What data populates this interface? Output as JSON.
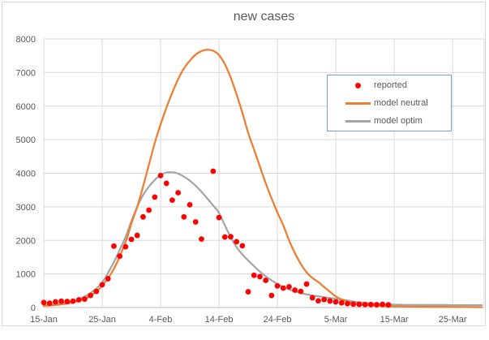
{
  "figure": {
    "outer_border_color": "#d9d9d9",
    "legend_border_color": "#79a2d1",
    "gridline_color": "#d9d9d9",
    "axis_line_color": "#bfbfbf",
    "text_color": "#595959"
  },
  "chart_data": {
    "type": "line+scatter",
    "title": "new cases",
    "xlabel": "",
    "ylabel": "",
    "grid": true,
    "legend_position": "inside top-right",
    "x_axis": {
      "tick_labels": [
        "15-Jan",
        "25-Jan",
        "4-Feb",
        "14-Feb",
        "24-Feb",
        "5-Mar",
        "15-Mar",
        "25-Mar"
      ],
      "tick_days": [
        0,
        10,
        20,
        30,
        40,
        50,
        60,
        70
      ],
      "domain_days": [
        0,
        75.4
      ]
    },
    "y_axis": {
      "min": 0,
      "max": 8000,
      "step": 1000,
      "tick_labels": [
        "0",
        "1000",
        "2000",
        "3000",
        "4000",
        "5000",
        "6000",
        "7000",
        "8000"
      ]
    },
    "series": [
      {
        "name": "reported",
        "type": "scatter",
        "color": "#ff0000",
        "marker": "dot",
        "dates": [
          "15-Jan",
          "16-Jan",
          "17-Jan",
          "18-Jan",
          "19-Jan",
          "20-Jan",
          "21-Jan",
          "22-Jan",
          "23-Jan",
          "24-Jan",
          "25-Jan",
          "26-Jan",
          "27-Jan",
          "28-Jan",
          "29-Jan",
          "30-Jan",
          "31-Jan",
          "1-Feb",
          "2-Feb",
          "3-Feb",
          "4-Feb",
          "5-Feb",
          "6-Feb",
          "7-Feb",
          "8-Feb",
          "9-Feb",
          "10-Feb",
          "11-Feb",
          "13-Feb",
          "14-Feb",
          "15-Feb",
          "16-Feb",
          "17-Feb",
          "18-Feb",
          "19-Feb",
          "20-Feb",
          "21-Feb",
          "22-Feb",
          "23-Feb",
          "24-Feb",
          "25-Feb",
          "26-Feb",
          "27-Feb",
          "28-Feb",
          "29-Feb",
          "1-Mar",
          "2-Mar",
          "3-Mar",
          "4-Mar",
          "5-Mar",
          "6-Mar",
          "7-Mar",
          "8-Mar",
          "9-Mar",
          "10-Mar",
          "11-Mar",
          "12-Mar",
          "13-Mar",
          "14-Mar"
        ],
        "days": [
          0,
          1,
          2,
          3,
          4,
          5,
          6,
          7,
          8,
          9,
          10,
          11,
          12,
          13,
          14,
          15,
          16,
          17,
          18,
          19,
          20,
          21,
          22,
          23,
          24,
          25,
          26,
          27,
          29,
          30,
          31,
          32,
          33,
          34,
          35,
          36,
          37,
          38,
          39,
          40,
          41,
          42,
          43,
          44,
          45,
          46,
          47,
          48,
          49,
          50,
          51,
          52,
          53,
          54,
          55,
          56,
          57,
          58,
          59
        ],
        "values": [
          150,
          130,
          170,
          190,
          180,
          190,
          230,
          250,
          360,
          480,
          680,
          860,
          1830,
          1530,
          1810,
          2030,
          2150,
          2700,
          2900,
          3290,
          3930,
          3700,
          3200,
          3420,
          2700,
          3060,
          2550,
          2040,
          4060,
          2680,
          2100,
          2110,
          1960,
          1840,
          470,
          960,
          920,
          810,
          360,
          645,
          580,
          620,
          520,
          480,
          700,
          290,
          200,
          235,
          195,
          170,
          140,
          115,
          100,
          95,
          90,
          90,
          85,
          95,
          80
        ]
      },
      {
        "name": "model neutral",
        "type": "line",
        "color": "#ed7d31",
        "points": [
          [
            0,
            50
          ],
          [
            2,
            75
          ],
          [
            4,
            120
          ],
          [
            6,
            200
          ],
          [
            8,
            350
          ],
          [
            10,
            650
          ],
          [
            12,
            1150
          ],
          [
            14,
            1950
          ],
          [
            15,
            2500
          ],
          [
            16,
            3000
          ],
          [
            17,
            3600
          ],
          [
            18,
            4250
          ],
          [
            19,
            4900
          ],
          [
            20,
            5450
          ],
          [
            21,
            5950
          ],
          [
            22,
            6400
          ],
          [
            23,
            6800
          ],
          [
            24,
            7120
          ],
          [
            25,
            7350
          ],
          [
            26,
            7530
          ],
          [
            27,
            7640
          ],
          [
            28,
            7680
          ],
          [
            29,
            7650
          ],
          [
            30,
            7520
          ],
          [
            31,
            7250
          ],
          [
            32,
            6850
          ],
          [
            33,
            6350
          ],
          [
            34,
            5800
          ],
          [
            35,
            5200
          ],
          [
            36,
            4700
          ],
          [
            37,
            4200
          ],
          [
            38,
            3700
          ],
          [
            39,
            3250
          ],
          [
            40,
            2830
          ],
          [
            41,
            2450
          ],
          [
            42,
            2000
          ],
          [
            43,
            1620
          ],
          [
            44,
            1300
          ],
          [
            45,
            1050
          ],
          [
            46,
            880
          ],
          [
            47,
            760
          ],
          [
            48,
            610
          ],
          [
            49,
            470
          ],
          [
            50,
            330
          ],
          [
            51,
            240
          ],
          [
            52,
            175
          ],
          [
            53,
            125
          ],
          [
            54,
            95
          ],
          [
            55,
            75
          ],
          [
            56,
            60
          ],
          [
            58,
            45
          ],
          [
            60,
            36
          ],
          [
            63,
            27
          ],
          [
            66,
            21
          ],
          [
            70,
            16
          ],
          [
            75,
            13
          ]
        ]
      },
      {
        "name": "model optim",
        "type": "line",
        "color": "#a5a5a5",
        "points": [
          [
            0,
            60
          ],
          [
            2,
            95
          ],
          [
            4,
            150
          ],
          [
            6,
            250
          ],
          [
            8,
            430
          ],
          [
            10,
            750
          ],
          [
            12,
            1350
          ],
          [
            13,
            1720
          ],
          [
            14,
            2100
          ],
          [
            15,
            2570
          ],
          [
            16,
            3000
          ],
          [
            17,
            3350
          ],
          [
            18,
            3600
          ],
          [
            19,
            3800
          ],
          [
            20,
            3950
          ],
          [
            21,
            4020
          ],
          [
            22,
            4030
          ],
          [
            23,
            3990
          ],
          [
            24,
            3900
          ],
          [
            25,
            3780
          ],
          [
            26,
            3630
          ],
          [
            27,
            3450
          ],
          [
            28,
            3250
          ],
          [
            29,
            3040
          ],
          [
            30,
            2820
          ],
          [
            31,
            2450
          ],
          [
            32,
            2100
          ],
          [
            33,
            1800
          ],
          [
            34,
            1580
          ],
          [
            35,
            1400
          ],
          [
            36,
            1230
          ],
          [
            37,
            1070
          ],
          [
            38,
            930
          ],
          [
            39,
            810
          ],
          [
            40,
            700
          ],
          [
            41,
            610
          ],
          [
            42,
            540
          ],
          [
            43,
            480
          ],
          [
            44,
            430
          ],
          [
            45,
            390
          ],
          [
            46,
            360
          ],
          [
            47,
            335
          ],
          [
            48,
            310
          ],
          [
            49,
            285
          ],
          [
            50,
            260
          ],
          [
            51,
            235
          ],
          [
            52,
            208
          ],
          [
            53,
            180
          ],
          [
            54,
            158
          ],
          [
            55,
            140
          ],
          [
            56,
            126
          ],
          [
            57,
            115
          ],
          [
            58,
            105
          ],
          [
            59,
            96
          ],
          [
            60,
            88
          ],
          [
            62,
            80
          ],
          [
            65,
            76
          ],
          [
            68,
            74
          ],
          [
            72,
            73
          ],
          [
            75,
            72
          ]
        ]
      }
    ]
  }
}
